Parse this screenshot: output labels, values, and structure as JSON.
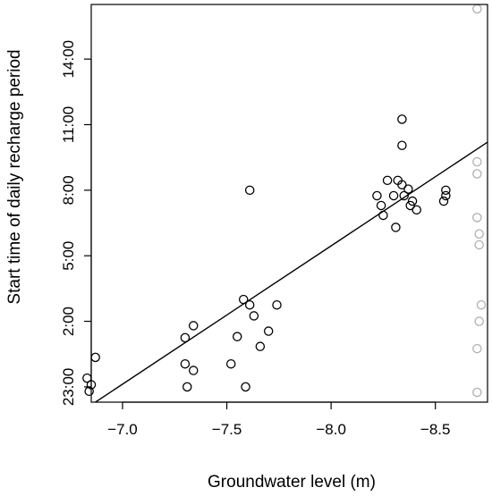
{
  "chart_data": {
    "type": "scatter",
    "xlabel": "Groundwater level (m)",
    "ylabel": "Start time of daily recharge period",
    "x_axis": {
      "reversed": true,
      "lim": [
        -6.85,
        -8.75
      ],
      "ticks": [
        -7.0,
        -7.5,
        -8.0,
        -8.5
      ],
      "tick_labels": [
        "−7.0",
        "−7.5",
        "−8.0",
        "−8.5"
      ]
    },
    "y_axis": {
      "lim": [
        -1.7,
        16.5
      ],
      "unit": "hours after midnight (values below 0 are the previous evening)",
      "ticks": [
        -1,
        2,
        5,
        8,
        11,
        14
      ],
      "tick_labels": [
        "23:00",
        "2:00",
        "5:00",
        "8:00",
        "11:00",
        "14:00"
      ]
    },
    "grid": false,
    "legend": "none",
    "colors": {
      "points": "#000000",
      "censored_points": "#b0b0b0",
      "fit_line": "#000000",
      "axes": "#000000"
    },
    "series": [
      {
        "color": "#000000",
        "points": [
          {
            "x": -6.83,
            "y": -0.6
          },
          {
            "x": -6.84,
            "y": -1.2
          },
          {
            "x": -6.85,
            "y": -0.9
          },
          {
            "x": -6.87,
            "y": 0.35
          },
          {
            "x": -7.3,
            "y": 1.25
          },
          {
            "x": -7.3,
            "y": 0.05
          },
          {
            "x": -7.31,
            "y": -1.0
          },
          {
            "x": -7.34,
            "y": 1.8
          },
          {
            "x": -7.34,
            "y": -0.25
          },
          {
            "x": -7.52,
            "y": 0.05
          },
          {
            "x": -7.55,
            "y": 1.3
          },
          {
            "x": -7.58,
            "y": 3.0
          },
          {
            "x": -7.59,
            "y": -1.0
          },
          {
            "x": -7.61,
            "y": 2.75
          },
          {
            "x": -7.61,
            "y": 8.0
          },
          {
            "x": -7.63,
            "y": 2.25
          },
          {
            "x": -7.66,
            "y": 0.85
          },
          {
            "x": -7.7,
            "y": 1.55
          },
          {
            "x": -7.74,
            "y": 2.75
          },
          {
            "x": -8.22,
            "y": 7.75
          },
          {
            "x": -8.24,
            "y": 7.3
          },
          {
            "x": -8.25,
            "y": 6.85
          },
          {
            "x": -8.27,
            "y": 8.45
          },
          {
            "x": -8.3,
            "y": 7.75
          },
          {
            "x": -8.31,
            "y": 6.3
          },
          {
            "x": -8.32,
            "y": 8.45
          },
          {
            "x": -8.34,
            "y": 11.25
          },
          {
            "x": -8.34,
            "y": 10.05
          },
          {
            "x": -8.34,
            "y": 8.25
          },
          {
            "x": -8.35,
            "y": 7.75
          },
          {
            "x": -8.37,
            "y": 8.05
          },
          {
            "x": -8.38,
            "y": 7.3
          },
          {
            "x": -8.39,
            "y": 7.5
          },
          {
            "x": -8.41,
            "y": 7.1
          },
          {
            "x": -8.54,
            "y": 7.5
          },
          {
            "x": -8.55,
            "y": 8.0
          },
          {
            "x": -8.55,
            "y": 7.75
          }
        ]
      },
      {
        "color": "#b0b0b0",
        "points": [
          {
            "x": -8.7,
            "y": 16.3
          },
          {
            "x": -8.7,
            "y": 9.3
          },
          {
            "x": -8.7,
            "y": 8.75
          },
          {
            "x": -8.7,
            "y": 6.75
          },
          {
            "x": -8.71,
            "y": 6.0
          },
          {
            "x": -8.71,
            "y": 5.5
          },
          {
            "x": -8.72,
            "y": 2.75
          },
          {
            "x": -8.71,
            "y": 2.0
          },
          {
            "x": -8.7,
            "y": 0.75
          },
          {
            "x": -8.7,
            "y": -1.25
          }
        ]
      }
    ],
    "fit_line": {
      "color": "#000000",
      "points": [
        {
          "x": -6.87,
          "y": -1.7
        },
        {
          "x": -8.75,
          "y": 10.2
        }
      ]
    }
  }
}
